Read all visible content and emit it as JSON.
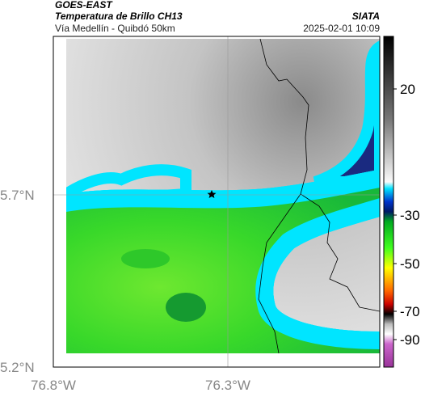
{
  "header": {
    "title": "GOES-EAST",
    "subtitle": "Temperatura de Brillo CH13",
    "region": "Vía Medellín - Quibdó 50km",
    "source": "SIATA",
    "datetime": "2025-02-01 10:09"
  },
  "map": {
    "y_labels": [
      "5.7°N",
      "5.2°N"
    ],
    "x_labels": [
      "76.8°W",
      "76.3°W"
    ]
  },
  "colorbar": {
    "labels": [
      "20",
      "-30",
      "-50",
      "-70",
      "-90"
    ]
  }
}
